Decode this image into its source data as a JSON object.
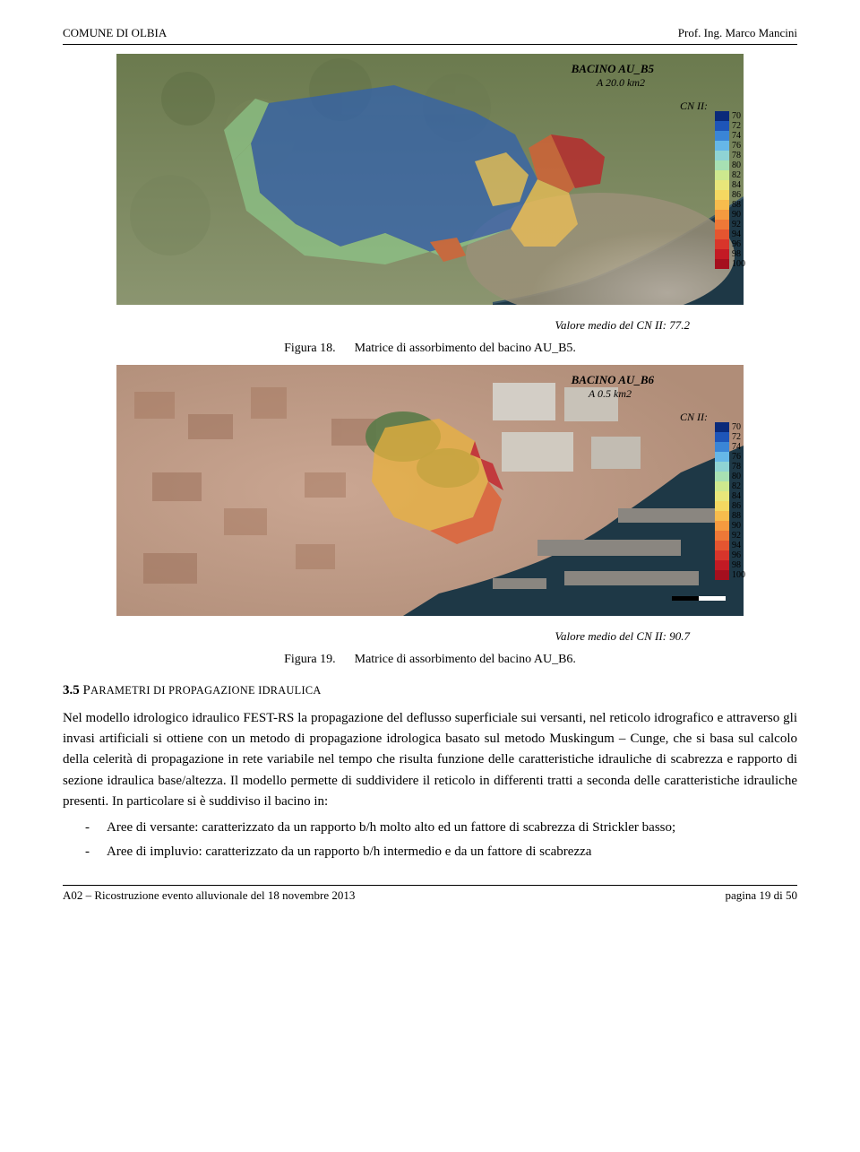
{
  "header": {
    "left": "COMUNE DI OLBIA",
    "right": "Prof. Ing. Marco Mancini"
  },
  "legend": {
    "values": [
      70,
      72,
      74,
      76,
      78,
      80,
      82,
      84,
      86,
      88,
      90,
      92,
      94,
      96,
      98,
      100
    ],
    "colors": [
      "#0a2a7a",
      "#1e55b8",
      "#3a85d6",
      "#66b7e8",
      "#8fd3d4",
      "#a7e0b3",
      "#cde88e",
      "#e8e67a",
      "#f4d861",
      "#f7bc4d",
      "#f59a3f",
      "#ee7837",
      "#e45530",
      "#d8352b",
      "#c31a24",
      "#a50f1e"
    ]
  },
  "map1": {
    "title_line1": "BACINO AU_B5",
    "title_line2": "A 20.0 km2",
    "cn_label": "CN II:",
    "valore": "Valore medio del CN II: 77.2",
    "caption_label": "Figura 18.",
    "caption_text": "Matrice di assorbimento del bacino AU_B5.",
    "bg_top": "#6b7a4e",
    "bg_bottom": "#8b9570",
    "coast": "#2a4653",
    "water": "#1e3846",
    "town": "#c4b8a8",
    "overlay_colors": {
      "low": "#2d5fb3",
      "mid": "#8ec88a",
      "warm": "#f4c354",
      "hot": "#e25b2e",
      "max": "#c31a24"
    }
  },
  "map2": {
    "title_line1": "BACINO AU_B6",
    "title_line2": "A 0.5 km2",
    "cn_label": "CN II:",
    "valore": "Valore medio del CN II: 90.7",
    "caption_label": "Figura 19.",
    "caption_text": "Matrice di assorbimento del bacino AU_B6.",
    "bg_town": "#c4a898",
    "bg_roof": "#a57860",
    "water": "#1e3846",
    "pier": "#8a8680",
    "green": "#5a7a48",
    "overlay_colors": {
      "warm": "#eab23e",
      "hot": "#e25b2e",
      "max": "#c31a24"
    }
  },
  "section": {
    "num": "3.5",
    "title_smallcaps": "Parametri di propagazione idraulica",
    "body": "Nel modello idrologico idraulico FEST-RS la propagazione del deflusso superficiale sui versanti, nel reticolo idrografico e attraverso gli invasi artificiali si ottiene con un metodo di propagazione idrologica basato sul metodo Muskingum – Cunge, che si basa sul calcolo della celerità di propagazione in rete variabile nel tempo che risulta funzione delle caratteristiche idrauliche di scabrezza e rapporto di sezione idraulica base/altezza. Il modello permette di suddividere il reticolo in differenti tratti a seconda delle caratteristiche idrauliche presenti. In particolare si è suddiviso il bacino in:",
    "bullets": [
      "Aree di versante: caratterizzato da un rapporto b/h molto alto ed un fattore di scabrezza di Strickler basso;",
      "Aree di impluvio: caratterizzato da un rapporto b/h intermedio e da un fattore di scabrezza"
    ]
  },
  "footer": {
    "left": "A02 – Ricostruzione evento alluvionale del 18 novembre 2013",
    "right": "pagina 19 di 50"
  }
}
